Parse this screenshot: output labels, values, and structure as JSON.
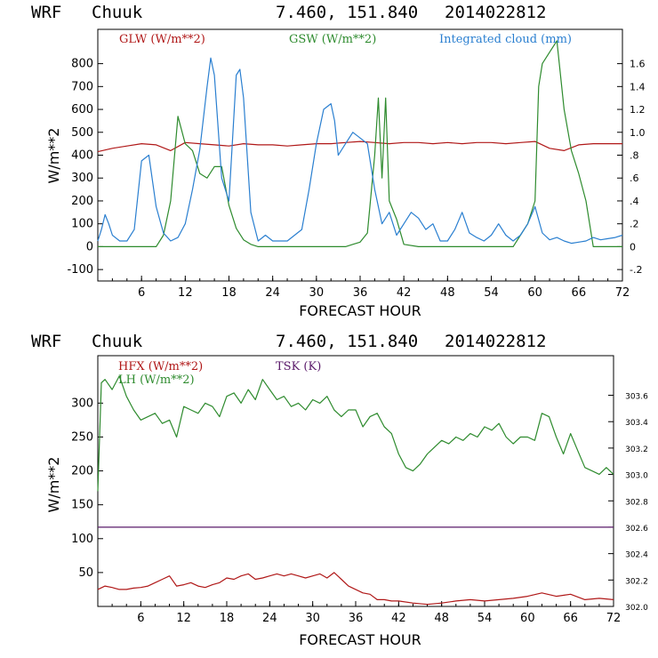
{
  "chart_data": [
    {
      "type": "line",
      "header": {
        "model": "WRF",
        "location": "Chuuk",
        "coords": "7.460, 151.840",
        "run": "2014022812"
      },
      "xlabel": "FORECAST HOUR",
      "ylabel": "W/m**2",
      "xlim": [
        0,
        72
      ],
      "ylim": [
        -150,
        950
      ],
      "y2lim": [
        -0.3,
        1.9
      ],
      "x_ticks": [
        "6",
        "12",
        "18",
        "24",
        "30",
        "36",
        "42",
        "48",
        "54",
        "60",
        "66",
        "72"
      ],
      "y_ticks": [
        "-100",
        "0",
        "100",
        "200",
        "300",
        "400",
        "500",
        "600",
        "700",
        "800"
      ],
      "y2_ticks": [
        "-.2",
        "0",
        ".2",
        ".4",
        ".6",
        ".8",
        "1.0",
        "1.2",
        "1.4",
        "1.6"
      ],
      "colors": {
        "glw": "#b01818",
        "gsw": "#2e8b2e",
        "cloud": "#2a7fd0"
      },
      "series": [
        {
          "name": "GLW (W/m**2)",
          "axis": "left",
          "x": [
            0,
            2,
            4,
            6,
            8,
            10,
            12,
            14,
            16,
            18,
            20,
            22,
            24,
            26,
            28,
            30,
            32,
            34,
            36,
            38,
            40,
            42,
            44,
            46,
            48,
            50,
            52,
            54,
            56,
            58,
            60,
            62,
            64,
            66,
            68,
            70,
            72
          ],
          "y": [
            415,
            430,
            440,
            450,
            445,
            420,
            455,
            450,
            445,
            440,
            450,
            445,
            445,
            440,
            445,
            450,
            450,
            455,
            460,
            455,
            450,
            455,
            455,
            450,
            455,
            450,
            455,
            455,
            450,
            455,
            460,
            430,
            420,
            445,
            450,
            450,
            450
          ]
        },
        {
          "name": "GSW (W/m**2)",
          "axis": "left",
          "x": [
            0,
            8,
            9,
            10,
            11,
            12,
            13,
            14,
            15,
            16,
            17,
            18,
            19,
            20,
            21,
            22,
            23,
            24,
            28,
            32,
            34,
            35,
            36,
            37,
            38,
            38.5,
            39,
            39.5,
            40,
            41,
            42,
            44,
            48,
            54,
            57,
            58,
            59,
            60,
            60.5,
            61,
            62,
            63,
            64,
            65,
            66,
            67,
            68,
            72
          ],
          "y": [
            0,
            0,
            50,
            200,
            570,
            450,
            420,
            320,
            300,
            350,
            350,
            180,
            80,
            30,
            10,
            0,
            0,
            0,
            0,
            0,
            0,
            10,
            20,
            60,
            400,
            650,
            300,
            650,
            200,
            120,
            10,
            0,
            0,
            0,
            0,
            50,
            100,
            200,
            700,
            800,
            850,
            900,
            600,
            420,
            320,
            200,
            0,
            0
          ]
        },
        {
          "name": "Integrated cloud (mm)",
          "axis": "right",
          "x": [
            0,
            0.5,
            1,
            1.5,
            2,
            3,
            4,
            5,
            6,
            7,
            8,
            9,
            10,
            11,
            12,
            13,
            14,
            15,
            15.5,
            16,
            17,
            18,
            19,
            19.5,
            20,
            21,
            22,
            23,
            24,
            26,
            28,
            29,
            30,
            31,
            32,
            32.5,
            33,
            34,
            35,
            36,
            37,
            38,
            39,
            40,
            41,
            42,
            43,
            44,
            45,
            46,
            47,
            48,
            49,
            50,
            51,
            52,
            53,
            54,
            55,
            56,
            57,
            58,
            59,
            60,
            61,
            62,
            63,
            64,
            65,
            66,
            67,
            68,
            69,
            70,
            71,
            72
          ],
          "y": [
            0.05,
            0.15,
            0.28,
            0.2,
            0.1,
            0.05,
            0.05,
            0.15,
            0.75,
            0.8,
            0.35,
            0.12,
            0.05,
            0.08,
            0.2,
            0.5,
            0.85,
            1.4,
            1.65,
            1.5,
            0.6,
            0.4,
            1.5,
            1.55,
            1.3,
            0.3,
            0.05,
            0.1,
            0.05,
            0.05,
            0.15,
            0.5,
            0.9,
            1.2,
            1.25,
            1.1,
            0.8,
            0.9,
            1.0,
            0.95,
            0.9,
            0.5,
            0.2,
            0.3,
            0.1,
            0.2,
            0.3,
            0.25,
            0.15,
            0.2,
            0.05,
            0.05,
            0.15,
            0.3,
            0.12,
            0.08,
            0.05,
            0.1,
            0.2,
            0.1,
            0.05,
            0.1,
            0.2,
            0.35,
            0.12,
            0.06,
            0.08,
            0.05,
            0.03,
            0.04,
            0.05,
            0.08,
            0.06,
            0.07,
            0.08,
            0.1
          ]
        }
      ]
    },
    {
      "type": "line",
      "header": {
        "model": "WRF",
        "location": "Chuuk",
        "coords": "7.460, 151.840",
        "run": "2014022812"
      },
      "xlabel": "FORECAST HOUR",
      "ylabel": "W/m**2",
      "xlim": [
        0,
        72
      ],
      "ylim": [
        0,
        370
      ],
      "y2lim": [
        302.0,
        303.9
      ],
      "x_ticks": [
        "6",
        "12",
        "18",
        "24",
        "30",
        "36",
        "42",
        "48",
        "54",
        "60",
        "66",
        "72"
      ],
      "y_ticks": [
        "50",
        "100",
        "150",
        "200",
        "250",
        "300"
      ],
      "y2_ticks": [
        "302.0",
        "302.2",
        "302.4",
        "302.6",
        "302.8",
        "303.0",
        "303.2",
        "303.4",
        "303.6"
      ],
      "colors": {
        "hfx": "#b01818",
        "lh": "#2e8b2e",
        "tsk": "#5a1a6a"
      },
      "series": [
        {
          "name": "HFX (W/m**2)",
          "axis": "left",
          "x": [
            0,
            1,
            2,
            3,
            4,
            5,
            6,
            7,
            8,
            9,
            10,
            11,
            12,
            13,
            14,
            15,
            16,
            17,
            18,
            19,
            20,
            21,
            22,
            23,
            24,
            25,
            26,
            27,
            28,
            29,
            30,
            31,
            32,
            33,
            34,
            35,
            36,
            37,
            38,
            39,
            40,
            41,
            42,
            44,
            46,
            48,
            50,
            52,
            54,
            56,
            58,
            60,
            62,
            64,
            66,
            68,
            70,
            72
          ],
          "y": [
            25,
            30,
            28,
            25,
            25,
            27,
            28,
            30,
            35,
            40,
            45,
            30,
            32,
            35,
            30,
            28,
            32,
            35,
            42,
            40,
            45,
            48,
            40,
            42,
            45,
            48,
            45,
            48,
            45,
            42,
            45,
            48,
            42,
            50,
            40,
            30,
            25,
            20,
            18,
            10,
            10,
            8,
            8,
            5,
            3,
            5,
            8,
            10,
            8,
            10,
            12,
            15,
            20,
            15,
            18,
            10,
            12,
            10
          ]
        },
        {
          "name": "LH (W/m**2)",
          "axis": "left",
          "x": [
            0,
            0.5,
            1,
            2,
            3,
            4,
            5,
            6,
            7,
            8,
            9,
            10,
            11,
            12,
            13,
            14,
            15,
            16,
            17,
            18,
            19,
            20,
            21,
            22,
            23,
            24,
            25,
            26,
            27,
            28,
            29,
            30,
            31,
            32,
            33,
            34,
            35,
            36,
            37,
            38,
            39,
            40,
            41,
            42,
            43,
            44,
            45,
            46,
            47,
            48,
            49,
            50,
            51,
            52,
            53,
            54,
            55,
            56,
            57,
            58,
            59,
            60,
            61,
            62,
            63,
            64,
            65,
            66,
            67,
            68,
            69,
            70,
            71,
            72
          ],
          "y": [
            170,
            330,
            335,
            320,
            340,
            310,
            290,
            275,
            280,
            285,
            270,
            275,
            250,
            295,
            290,
            285,
            300,
            295,
            280,
            310,
            315,
            300,
            320,
            305,
            335,
            320,
            305,
            310,
            295,
            300,
            290,
            305,
            300,
            310,
            290,
            280,
            290,
            290,
            265,
            280,
            285,
            265,
            255,
            225,
            205,
            200,
            210,
            225,
            235,
            245,
            240,
            250,
            245,
            255,
            250,
            265,
            260,
            270,
            250,
            240,
            250,
            250,
            245,
            285,
            280,
            250,
            225,
            255,
            230,
            205,
            200,
            195,
            205,
            195
          ]
        },
        {
          "name": "TSK (K)",
          "axis": "right",
          "x": [
            0,
            72
          ],
          "y": [
            302.6,
            302.6
          ]
        }
      ]
    }
  ]
}
